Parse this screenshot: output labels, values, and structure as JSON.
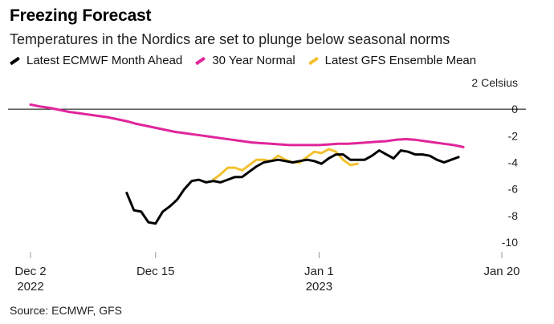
{
  "title": "Freezing Forecast",
  "subtitle": "Temperatures in the Nordics are set to plunge below seasonal norms",
  "source": "Source: ECMWF, GFS",
  "colors": {
    "ecmwf": "#000000",
    "normal": "#e0259a",
    "gfs": "#f2c12e",
    "zero_line": "#000000",
    "axis": "#999999"
  },
  "chart_data": {
    "type": "line",
    "title": "Freezing Forecast",
    "subtitle": "Temperatures in the Nordics are set to plunge below seasonal norms",
    "xlabel": "",
    "ylabel": "Celsius",
    "ylim": [
      -10,
      2
    ],
    "xlim": [
      "2022-12-02",
      "2023-01-20"
    ],
    "x_ticks": [
      {
        "date": "2022-12-02",
        "label": "Dec 2",
        "sublabel": "2022"
      },
      {
        "date": "2022-12-15",
        "label": "Dec 15",
        "sublabel": ""
      },
      {
        "date": "2023-01-01",
        "label": "Jan 1",
        "sublabel": "2023"
      },
      {
        "date": "2023-01-20",
        "label": "Jan 20",
        "sublabel": ""
      }
    ],
    "y_ticks": [
      {
        "value": 2,
        "label": "2 Celsius"
      },
      {
        "value": 0,
        "label": "0"
      },
      {
        "value": -2,
        "label": "-2"
      },
      {
        "value": -4,
        "label": "-4"
      },
      {
        "value": -6,
        "label": "-6"
      },
      {
        "value": -8,
        "label": "-8"
      },
      {
        "value": -10,
        "label": "-10"
      }
    ],
    "legend_position": "top-left",
    "series": [
      {
        "name": "Latest ECMWF Month Ahead",
        "color": "#000000",
        "points": [
          [
            "2022-12-12T00:00",
            -6.3
          ],
          [
            "2022-12-12T18:00",
            -7.6
          ],
          [
            "2022-12-13T12:00",
            -7.7
          ],
          [
            "2022-12-14T06:00",
            -8.5
          ],
          [
            "2022-12-15T00:00",
            -8.6
          ],
          [
            "2022-12-15T18:00",
            -7.7
          ],
          [
            "2022-12-16T12:00",
            -7.3
          ],
          [
            "2022-12-17T06:00",
            -6.8
          ],
          [
            "2022-12-18T00:00",
            -6.0
          ],
          [
            "2022-12-18T18:00",
            -5.4
          ],
          [
            "2022-12-19T12:00",
            -5.3
          ],
          [
            "2022-12-20T06:00",
            -5.5
          ],
          [
            "2022-12-21T00:00",
            -5.4
          ],
          [
            "2022-12-21T18:00",
            -5.5
          ],
          [
            "2022-12-22T12:00",
            -5.3
          ],
          [
            "2022-12-23T06:00",
            -5.1
          ],
          [
            "2022-12-24T00:00",
            -5.1
          ],
          [
            "2022-12-24T18:00",
            -4.7
          ],
          [
            "2022-12-25T12:00",
            -4.3
          ],
          [
            "2022-12-26T06:00",
            -4.0
          ],
          [
            "2022-12-27T00:00",
            -3.9
          ],
          [
            "2022-12-27T18:00",
            -3.8
          ],
          [
            "2022-12-28T12:00",
            -3.9
          ],
          [
            "2022-12-29T06:00",
            -4.0
          ],
          [
            "2022-12-30T00:00",
            -3.9
          ],
          [
            "2022-12-30T18:00",
            -3.8
          ],
          [
            "2022-12-31T12:00",
            -3.9
          ],
          [
            "2023-01-01T06:00",
            -4.1
          ],
          [
            "2023-01-02T00:00",
            -3.7
          ],
          [
            "2023-01-02T18:00",
            -3.4
          ],
          [
            "2023-01-03T12:00",
            -3.4
          ],
          [
            "2023-01-04T06:00",
            -3.8
          ],
          [
            "2023-01-05T00:00",
            -3.8
          ],
          [
            "2023-01-05T18:00",
            -3.8
          ],
          [
            "2023-01-06T12:00",
            -3.5
          ],
          [
            "2023-01-07T06:00",
            -3.1
          ],
          [
            "2023-01-08T00:00",
            -3.4
          ],
          [
            "2023-01-08T18:00",
            -3.7
          ],
          [
            "2023-01-09T12:00",
            -3.1
          ],
          [
            "2023-01-10T06:00",
            -3.2
          ],
          [
            "2023-01-11T00:00",
            -3.4
          ],
          [
            "2023-01-11T18:00",
            -3.4
          ],
          [
            "2023-01-12T12:00",
            -3.5
          ],
          [
            "2023-01-13T06:00",
            -3.8
          ],
          [
            "2023-01-14T00:00",
            -4.0
          ],
          [
            "2023-01-14T18:00",
            -3.8
          ],
          [
            "2023-01-15T12:00",
            -3.6
          ]
        ]
      },
      {
        "name": "30 Year Normal",
        "color": "#e0259a",
        "points": [
          [
            "2022-12-02",
            0.35
          ],
          [
            "2022-12-03",
            0.2
          ],
          [
            "2022-12-04",
            0.1
          ],
          [
            "2022-12-05",
            -0.05
          ],
          [
            "2022-12-06",
            -0.2
          ],
          [
            "2022-12-07",
            -0.3
          ],
          [
            "2022-12-08",
            -0.4
          ],
          [
            "2022-12-09",
            -0.5
          ],
          [
            "2022-12-10",
            -0.6
          ],
          [
            "2022-12-11",
            -0.75
          ],
          [
            "2022-12-12",
            -0.9
          ],
          [
            "2022-12-13",
            -1.1
          ],
          [
            "2022-12-14",
            -1.25
          ],
          [
            "2022-12-15",
            -1.4
          ],
          [
            "2022-12-16",
            -1.55
          ],
          [
            "2022-12-17",
            -1.7
          ],
          [
            "2022-12-18",
            -1.8
          ],
          [
            "2022-12-19",
            -1.9
          ],
          [
            "2022-12-20",
            -2.0
          ],
          [
            "2022-12-21",
            -2.1
          ],
          [
            "2022-12-22",
            -2.2
          ],
          [
            "2022-12-23",
            -2.3
          ],
          [
            "2022-12-24",
            -2.4
          ],
          [
            "2022-12-25",
            -2.5
          ],
          [
            "2022-12-26",
            -2.55
          ],
          [
            "2022-12-27",
            -2.6
          ],
          [
            "2022-12-28",
            -2.65
          ],
          [
            "2022-12-29",
            -2.7
          ],
          [
            "2022-12-30",
            -2.7
          ],
          [
            "2022-12-31",
            -2.7
          ],
          [
            "2023-01-01",
            -2.7
          ],
          [
            "2023-01-02",
            -2.65
          ],
          [
            "2023-01-03",
            -2.6
          ],
          [
            "2023-01-04",
            -2.6
          ],
          [
            "2023-01-05",
            -2.55
          ],
          [
            "2023-01-06",
            -2.5
          ],
          [
            "2023-01-07",
            -2.45
          ],
          [
            "2023-01-08",
            -2.4
          ],
          [
            "2023-01-09",
            -2.3
          ],
          [
            "2023-01-10",
            -2.25
          ],
          [
            "2023-01-11",
            -2.3
          ],
          [
            "2023-01-12",
            -2.4
          ],
          [
            "2023-01-13",
            -2.5
          ],
          [
            "2023-01-14",
            -2.6
          ],
          [
            "2023-01-15",
            -2.7
          ],
          [
            "2023-01-16",
            -2.85
          ]
        ]
      },
      {
        "name": "Latest GFS Ensemble Mean",
        "color": "#f2c12e",
        "points": [
          [
            "2022-12-21T00:00",
            -5.3
          ],
          [
            "2022-12-21T18:00",
            -4.9
          ],
          [
            "2022-12-22T12:00",
            -4.4
          ],
          [
            "2022-12-23T06:00",
            -4.4
          ],
          [
            "2022-12-24T00:00",
            -4.6
          ],
          [
            "2022-12-24T18:00",
            -4.2
          ],
          [
            "2022-12-25T12:00",
            -3.8
          ],
          [
            "2022-12-26T06:00",
            -3.8
          ],
          [
            "2022-12-27T00:00",
            -3.9
          ],
          [
            "2022-12-27T18:00",
            -3.5
          ],
          [
            "2022-12-28T12:00",
            -3.8
          ],
          [
            "2022-12-29T06:00",
            -4.0
          ],
          [
            "2022-12-30T00:00",
            -4.0
          ],
          [
            "2022-12-30T18:00",
            -3.6
          ],
          [
            "2022-12-31T12:00",
            -3.2
          ],
          [
            "2023-01-01T06:00",
            -3.3
          ],
          [
            "2023-01-02T00:00",
            -3.0
          ],
          [
            "2023-01-02T18:00",
            -3.2
          ],
          [
            "2023-01-03T12:00",
            -3.8
          ],
          [
            "2023-01-04T06:00",
            -4.2
          ],
          [
            "2023-01-05T00:00",
            -4.1
          ]
        ]
      }
    ]
  }
}
